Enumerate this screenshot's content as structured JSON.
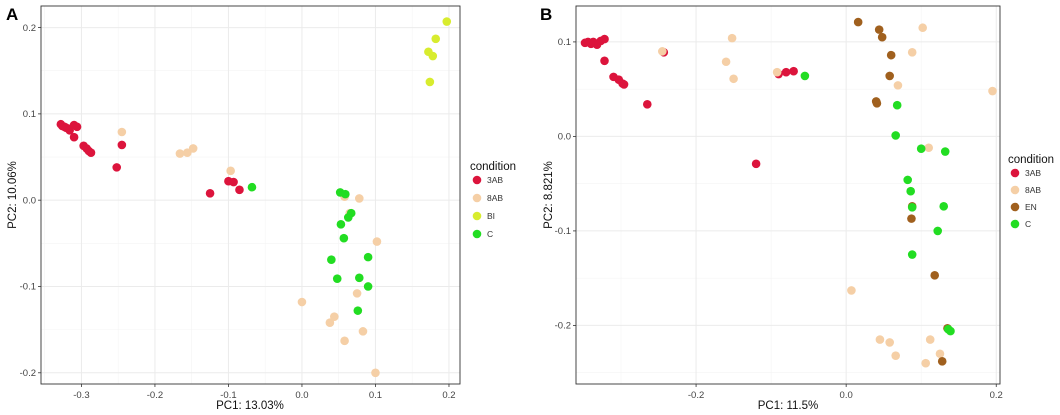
{
  "chart_data": [
    {
      "panel": "A",
      "type": "scatter",
      "xlabel": "PC1: 13.03%",
      "ylabel": "PC2: 10.06%",
      "xlim": [
        -0.355,
        0.215
      ],
      "ylim": [
        -0.213,
        0.225
      ],
      "xticks": [
        -0.3,
        -0.2,
        -0.1,
        0.0,
        0.1,
        0.2
      ],
      "xtick_labels": [
        "-0.3",
        "-0.2",
        "-0.1",
        "0.0",
        "0.1",
        "0.2"
      ],
      "yticks": [
        -0.2,
        -0.1,
        0.0,
        0.1,
        0.2
      ],
      "ytick_labels": [
        "-0.2",
        "-0.1",
        "0.0",
        "0.1",
        "0.2"
      ],
      "legend_title": "condition",
      "series": [
        {
          "name": "3AB",
          "color": "#dc143c",
          "points": [
            [
              -0.328,
              0.088
            ],
            [
              -0.326,
              0.086
            ],
            [
              -0.323,
              0.085
            ],
            [
              -0.321,
              0.084
            ],
            [
              -0.318,
              0.083
            ],
            [
              -0.316,
              0.081
            ],
            [
              -0.31,
              0.087
            ],
            [
              -0.306,
              0.085
            ],
            [
              -0.31,
              0.073
            ],
            [
              -0.297,
              0.063
            ],
            [
              -0.293,
              0.06
            ],
            [
              -0.29,
              0.057
            ],
            [
              -0.287,
              0.055
            ],
            [
              -0.252,
              0.038
            ],
            [
              -0.245,
              0.064
            ],
            [
              -0.125,
              0.008
            ],
            [
              -0.1,
              0.022
            ],
            [
              -0.093,
              0.021
            ],
            [
              -0.085,
              0.012
            ]
          ]
        },
        {
          "name": "8AB",
          "color": "#f5cfa6",
          "points": [
            [
              -0.245,
              0.079
            ],
            [
              -0.166,
              0.054
            ],
            [
              -0.156,
              0.055
            ],
            [
              -0.148,
              0.06
            ],
            [
              -0.097,
              0.034
            ],
            [
              0.058,
              0.004
            ],
            [
              0.065,
              -0.015
            ],
            [
              0.078,
              0.002
            ],
            [
              0.102,
              -0.048
            ],
            [
              0.0,
              -0.118
            ],
            [
              0.038,
              -0.142
            ],
            [
              0.044,
              -0.135
            ],
            [
              0.058,
              -0.163
            ],
            [
              0.075,
              -0.108
            ],
            [
              0.083,
              -0.152
            ],
            [
              0.1,
              -0.2
            ]
          ]
        },
        {
          "name": "BI",
          "color": "#d8ec2e",
          "points": [
            [
              0.197,
              0.207
            ],
            [
              0.182,
              0.187
            ],
            [
              0.172,
              0.172
            ],
            [
              0.178,
              0.167
            ],
            [
              0.174,
              0.137
            ]
          ]
        },
        {
          "name": "C",
          "color": "#22dd22",
          "points": [
            [
              -0.068,
              0.015
            ],
            [
              0.052,
              0.009
            ],
            [
              0.059,
              0.007
            ],
            [
              0.067,
              -0.015
            ],
            [
              0.063,
              -0.02
            ],
            [
              0.053,
              -0.028
            ],
            [
              0.057,
              -0.044
            ],
            [
              0.04,
              -0.069
            ],
            [
              0.048,
              -0.091
            ],
            [
              0.09,
              -0.066
            ],
            [
              0.078,
              -0.09
            ],
            [
              0.09,
              -0.1
            ],
            [
              0.076,
              -0.128
            ]
          ]
        }
      ]
    },
    {
      "panel": "B",
      "type": "scatter",
      "xlabel": "PC1: 11.5%",
      "ylabel": "PC2: 8.821%",
      "xlim": [
        -0.36,
        0.205
      ],
      "ylim": [
        -0.262,
        0.138
      ],
      "xticks": [
        -0.2,
        0.0,
        0.2
      ],
      "xtick_labels": [
        "-0.2",
        "0.0",
        "0.2"
      ],
      "yticks": [
        -0.2,
        -0.1,
        0.0,
        0.1
      ],
      "ytick_labels": [
        "-0.2",
        "-0.1",
        "0.0",
        "0.1"
      ],
      "legend_title": "condition",
      "series": [
        {
          "name": "3AB",
          "color": "#dc143c",
          "points": [
            [
              -0.348,
              0.099
            ],
            [
              -0.344,
              0.1
            ],
            [
              -0.34,
              0.098
            ],
            [
              -0.337,
              0.1
            ],
            [
              -0.332,
              0.097
            ],
            [
              -0.327,
              0.101
            ],
            [
              -0.322,
              0.103
            ],
            [
              -0.322,
              0.08
            ],
            [
              -0.31,
              0.063
            ],
            [
              -0.303,
              0.06
            ],
            [
              -0.298,
              0.056
            ],
            [
              -0.296,
              0.055
            ],
            [
              -0.265,
              0.034
            ],
            [
              -0.243,
              0.089
            ],
            [
              -0.12,
              -0.029
            ],
            [
              -0.09,
              0.066
            ],
            [
              -0.08,
              0.068
            ],
            [
              -0.07,
              0.069
            ]
          ]
        },
        {
          "name": "8AB",
          "color": "#f5cfa6",
          "points": [
            [
              -0.245,
              0.09
            ],
            [
              -0.152,
              0.104
            ],
            [
              -0.16,
              0.079
            ],
            [
              -0.15,
              0.061
            ],
            [
              -0.092,
              0.068
            ],
            [
              0.102,
              0.115
            ],
            [
              0.088,
              0.089
            ],
            [
              0.069,
              0.054
            ],
            [
              0.195,
              0.048
            ],
            [
              0.11,
              -0.012
            ],
            [
              0.007,
              -0.163
            ],
            [
              0.045,
              -0.215
            ],
            [
              0.058,
              -0.218
            ],
            [
              0.066,
              -0.232
            ],
            [
              0.112,
              -0.215
            ],
            [
              0.106,
              -0.24
            ],
            [
              0.125,
              -0.23
            ]
          ]
        },
        {
          "name": "EN",
          "color": "#a0601e",
          "points": [
            [
              0.016,
              0.121
            ],
            [
              0.044,
              0.113
            ],
            [
              0.048,
              0.105
            ],
            [
              0.06,
              0.086
            ],
            [
              0.058,
              0.064
            ],
            [
              0.04,
              0.037
            ],
            [
              0.041,
              0.035
            ],
            [
              0.088,
              -0.074
            ],
            [
              0.087,
              -0.087
            ],
            [
              0.118,
              -0.147
            ],
            [
              0.135,
              -0.203
            ],
            [
              0.128,
              -0.238
            ]
          ]
        },
        {
          "name": "C",
          "color": "#22dd22",
          "points": [
            [
              -0.055,
              0.064
            ],
            [
              0.068,
              0.033
            ],
            [
              0.066,
              0.001
            ],
            [
              0.1,
              -0.013
            ],
            [
              0.132,
              -0.016
            ],
            [
              0.082,
              -0.046
            ],
            [
              0.086,
              -0.058
            ],
            [
              0.088,
              -0.075
            ],
            [
              0.13,
              -0.074
            ],
            [
              0.122,
              -0.1
            ],
            [
              0.088,
              -0.125
            ],
            [
              0.136,
              -0.204
            ],
            [
              0.139,
              -0.206
            ]
          ]
        }
      ]
    }
  ]
}
